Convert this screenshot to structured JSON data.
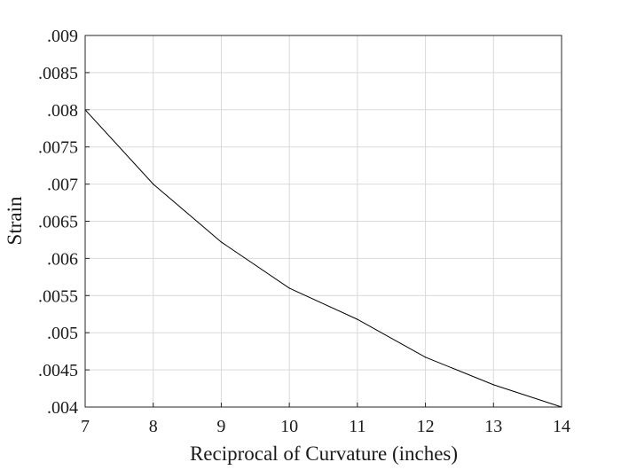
{
  "chart_data": {
    "type": "line",
    "title": "",
    "xlabel": "Reciprocal of Curvature (inches)",
    "ylabel": "Strain",
    "xlim": [
      7,
      14
    ],
    "ylim": [
      0.004,
      0.009
    ],
    "grid": true,
    "legend": "none",
    "x_ticks": [
      7,
      8,
      9,
      10,
      11,
      12,
      13,
      14
    ],
    "x_tick_labels": [
      "7",
      "8",
      "9",
      "10",
      "11",
      "12",
      "13",
      "14"
    ],
    "y_ticks": [
      0.004,
      0.0045,
      0.005,
      0.0055,
      0.006,
      0.0065,
      0.007,
      0.0075,
      0.008,
      0.0085,
      0.009
    ],
    "y_tick_labels": [
      ".004",
      ".0045",
      ".005",
      ".0055",
      ".006",
      ".0065",
      ".007",
      ".0075",
      ".008",
      ".0085",
      ".009"
    ],
    "series": [
      {
        "x": [
          7,
          8,
          9,
          10,
          11,
          12,
          13,
          14
        ],
        "values": [
          0.008,
          0.007,
          0.00622,
          0.0056,
          0.00518,
          0.00467,
          0.0043,
          0.004
        ]
      }
    ],
    "colors": {
      "line": "#000000",
      "grid": "#d9d9d9",
      "axes": "#262626"
    }
  }
}
